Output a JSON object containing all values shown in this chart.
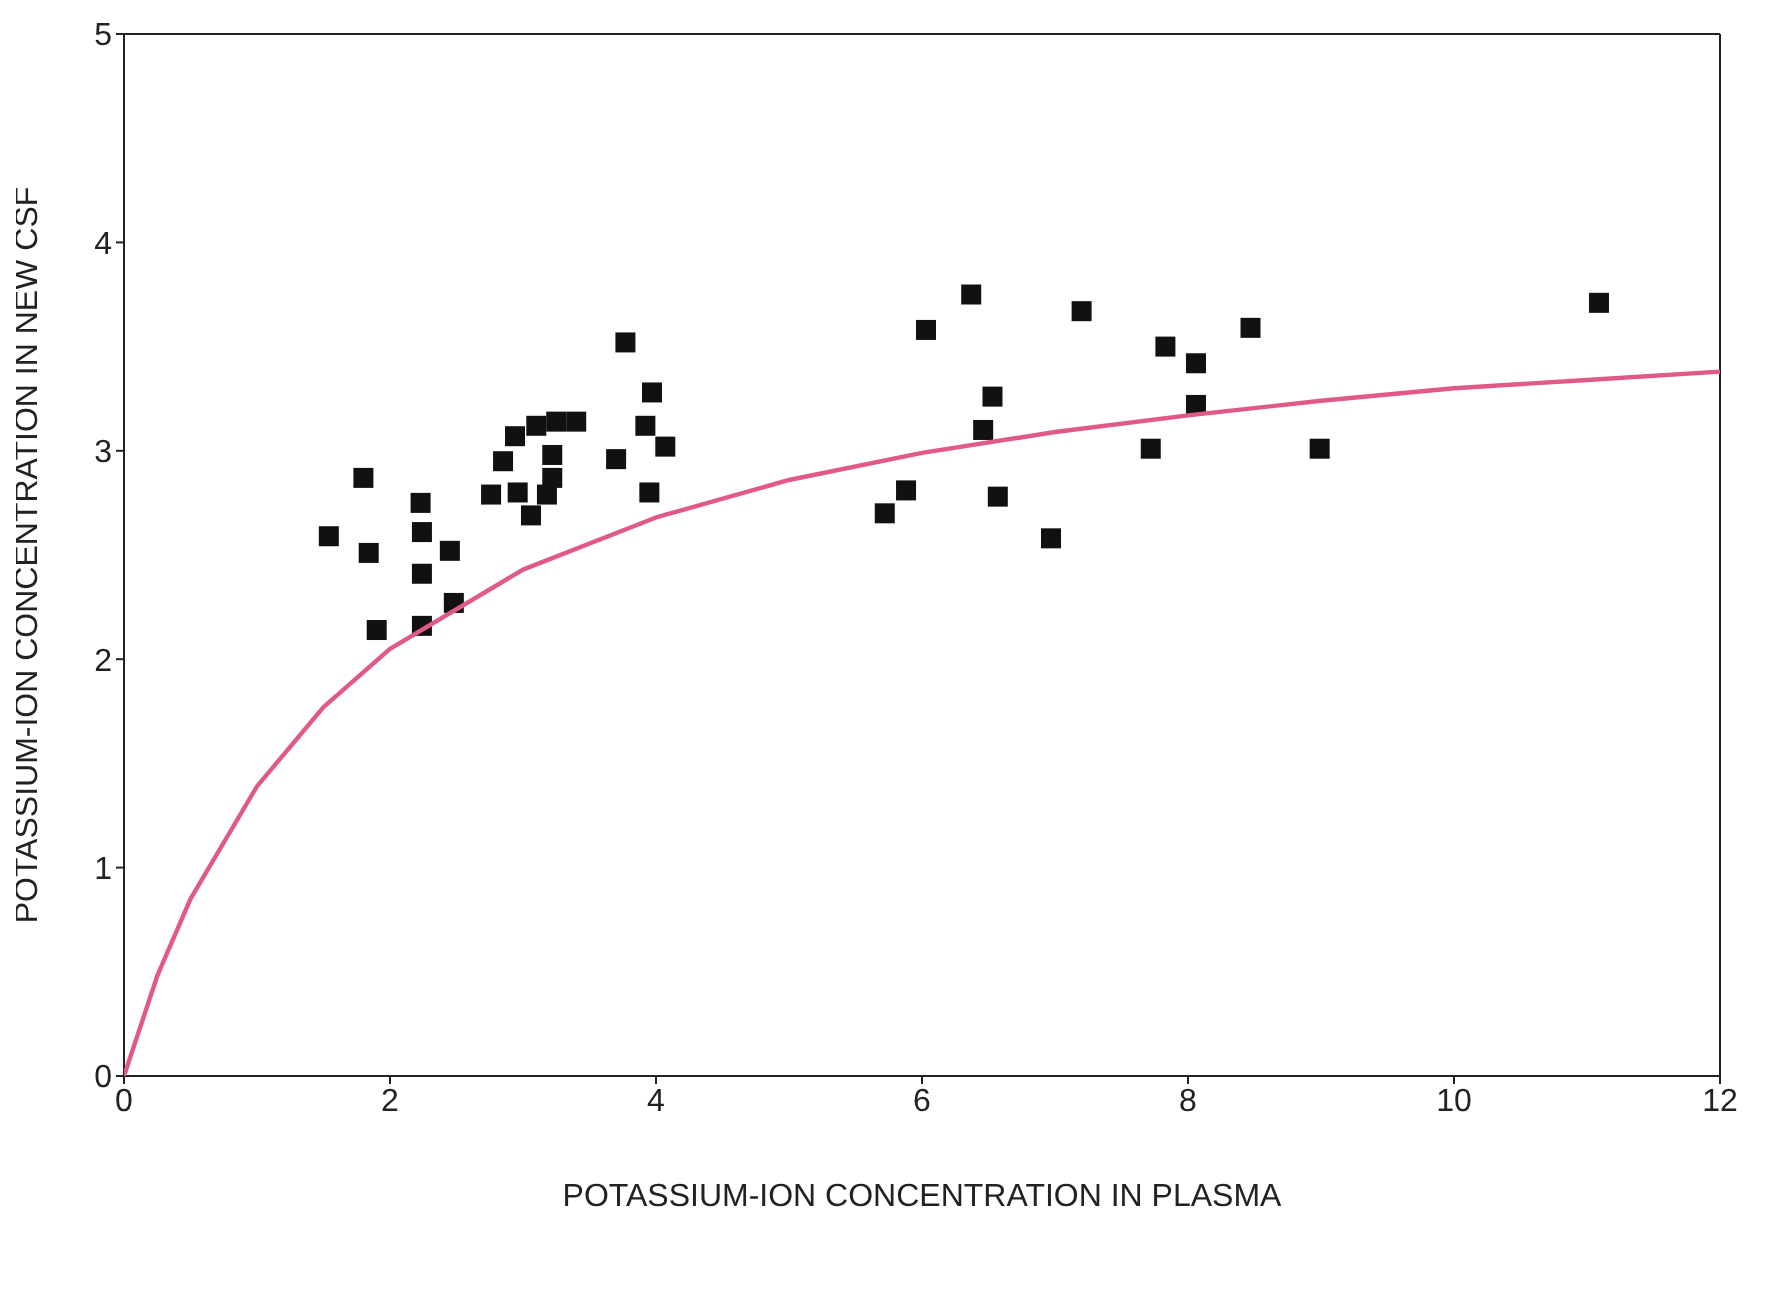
{
  "chart_data": {
    "type": "scatter",
    "xlabel": "POTASSIUM-ION CONCENTRATION IN PLASMA",
    "ylabel": "POTASSIUM-ION CONCENTRATION IN NEW CSF",
    "xlim": [
      0,
      12
    ],
    "xticks": [
      0,
      2,
      4,
      6,
      8,
      10,
      12
    ],
    "ylim": [
      0,
      5
    ],
    "yticks": [
      0,
      1,
      2,
      3,
      4,
      5
    ],
    "series": [
      {
        "color": "#111111",
        "marker": "square",
        "x": [
          1.54,
          1.8,
          1.84,
          1.9,
          2.23,
          2.24,
          2.24,
          2.24,
          2.45,
          2.48,
          2.76,
          2.85,
          2.94,
          2.96,
          3.06,
          3.1,
          3.18,
          3.22,
          3.22,
          3.25,
          3.4,
          3.7,
          3.77,
          3.92,
          3.97,
          3.95,
          4.07,
          5.72,
          5.88,
          6.03,
          6.37,
          6.46,
          6.53,
          6.57,
          6.97,
          7.2,
          7.72,
          7.83,
          8.06,
          8.06,
          8.47,
          8.99,
          11.09
        ],
        "values": [
          2.59,
          2.87,
          2.51,
          2.14,
          2.75,
          2.61,
          2.41,
          2.16,
          2.52,
          2.27,
          2.79,
          2.95,
          3.07,
          2.8,
          2.69,
          3.12,
          2.79,
          2.87,
          2.98,
          3.14,
          3.14,
          2.96,
          3.52,
          3.12,
          3.28,
          2.8,
          3.02,
          2.7,
          2.81,
          3.58,
          3.75,
          3.1,
          3.26,
          2.78,
          2.58,
          3.67,
          3.01,
          3.5,
          3.42,
          3.22,
          3.59,
          3.01,
          3.71
        ]
      },
      {
        "type": "line",
        "color": "#e05a84",
        "marker": "none",
        "line_style": "solid",
        "x": [
          0,
          0.25,
          0.5,
          1,
          1.5,
          2,
          3,
          4,
          5,
          6,
          7,
          8,
          9,
          10,
          11,
          12
        ],
        "values": [
          0,
          0.48,
          0.85,
          1.39,
          1.77,
          2.05,
          2.43,
          2.68,
          2.86,
          2.99,
          3.09,
          3.17,
          3.24,
          3.3,
          3.34,
          3.38
        ]
      }
    ]
  }
}
